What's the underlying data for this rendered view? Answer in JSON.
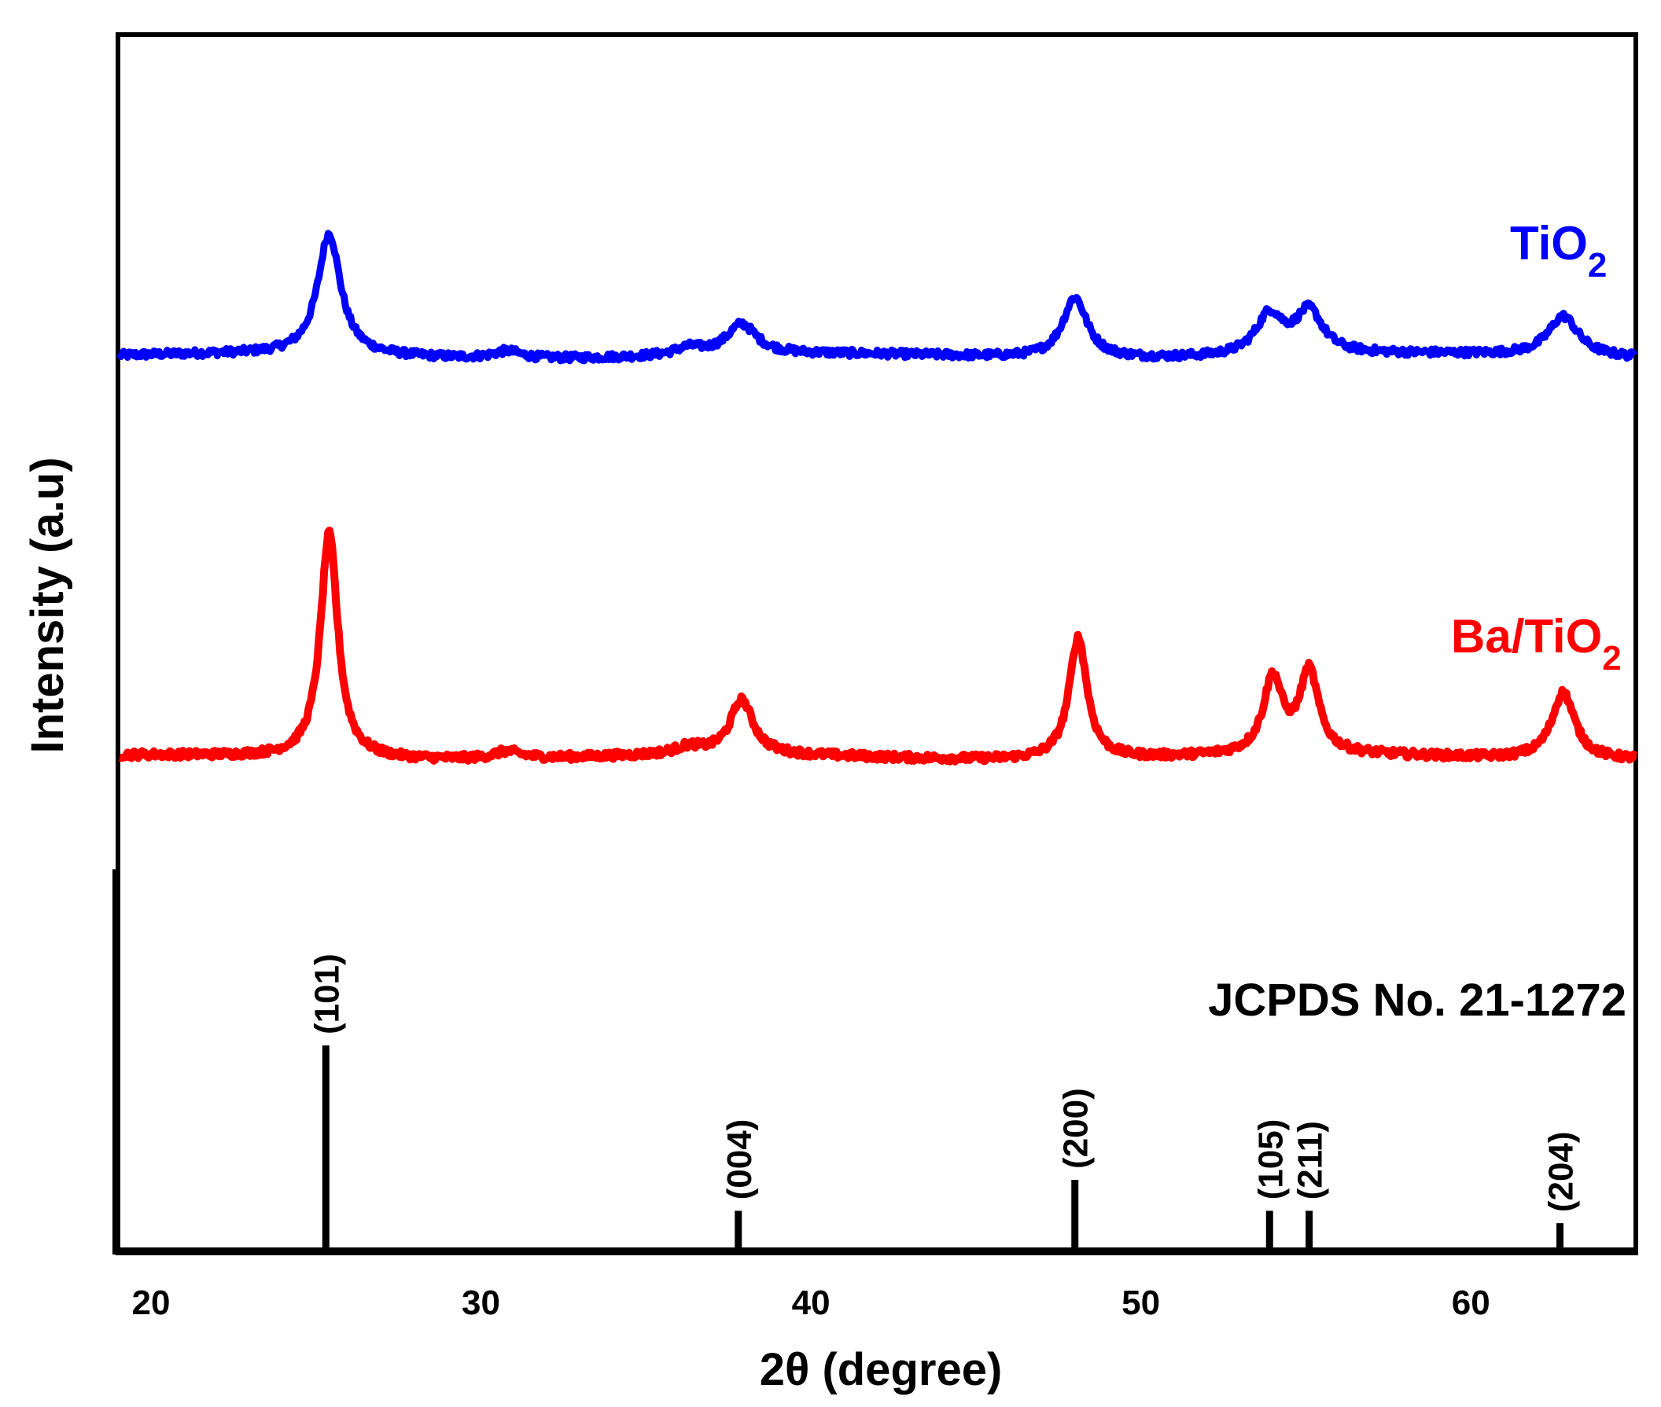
{
  "chart_data": {
    "type": "line",
    "title": "",
    "xlabel": "2θ (degree)",
    "ylabel": "Intensity (a.u)",
    "xlim": [
      19,
      65
    ],
    "ylim": [
      0,
      1
    ],
    "x_ticks": [
      "20",
      "30",
      "40",
      "50",
      "60"
    ],
    "series": [
      {
        "name": "TiO",
        "name_sub": "2",
        "color": "#0000ff",
        "baseline": 0.735,
        "peaks": [
          {
            "x": 25.4,
            "height": 0.1,
            "width": 0.42
          },
          {
            "x": 30.8,
            "height": 0.006,
            "width": 0.5
          },
          {
            "x": 36.3,
            "height": 0.006,
            "width": 0.5
          },
          {
            "x": 37.9,
            "height": 0.025,
            "width": 0.55
          },
          {
            "x": 48.0,
            "height": 0.05,
            "width": 0.45
          },
          {
            "x": 53.9,
            "height": 0.033,
            "width": 0.5
          },
          {
            "x": 55.1,
            "height": 0.035,
            "width": 0.5
          },
          {
            "x": 62.8,
            "height": 0.033,
            "width": 0.55
          }
        ]
      },
      {
        "name": "Ba/TiO",
        "name_sub": "2",
        "color": "#ff0000",
        "baseline": 0.405,
        "peaks": [
          {
            "x": 25.4,
            "height": 0.185,
            "width": 0.32
          },
          {
            "x": 30.8,
            "height": 0.006,
            "width": 0.5
          },
          {
            "x": 36.3,
            "height": 0.006,
            "width": 0.5
          },
          {
            "x": 37.9,
            "height": 0.045,
            "width": 0.42
          },
          {
            "x": 48.1,
            "height": 0.1,
            "width": 0.33
          },
          {
            "x": 54.0,
            "height": 0.062,
            "width": 0.35
          },
          {
            "x": 55.1,
            "height": 0.067,
            "width": 0.35
          },
          {
            "x": 62.8,
            "height": 0.055,
            "width": 0.42
          }
        ]
      }
    ],
    "reference": {
      "label": "JCPDS No. 21-1272",
      "lines": [
        {
          "x": 25.3,
          "intensity": 100,
          "hkl": "(101)"
        },
        {
          "x": 37.8,
          "intensity": 20,
          "hkl": "(004)"
        },
        {
          "x": 48.0,
          "intensity": 35,
          "hkl": "(200)"
        },
        {
          "x": 53.9,
          "intensity": 20,
          "hkl": "(105)"
        },
        {
          "x": 55.1,
          "intensity": 20,
          "hkl": "(211)"
        },
        {
          "x": 62.7,
          "intensity": 14,
          "hkl": "(204)"
        }
      ]
    }
  }
}
